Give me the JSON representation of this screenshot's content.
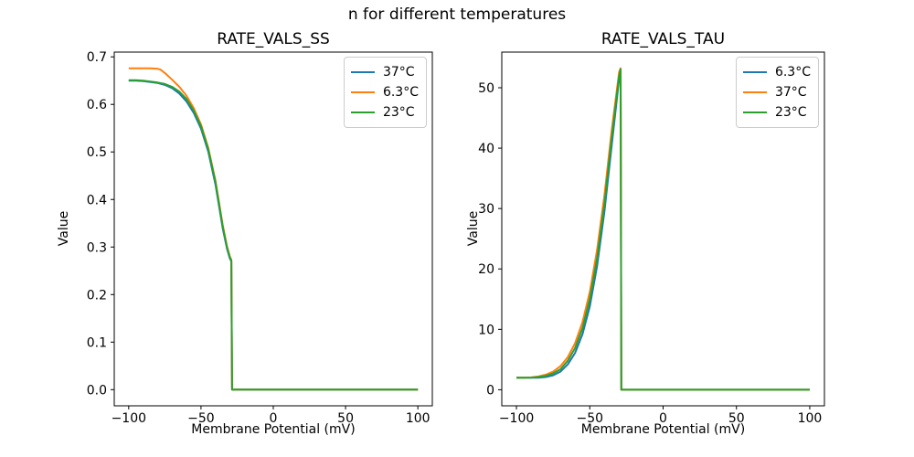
{
  "figure": {
    "suptitle": "n for different temperatures",
    "background": "#ffffff"
  },
  "colors": {
    "series_blue": "#1f77b4",
    "series_orange": "#ff7f0e",
    "series_green": "#2ca02c",
    "axis": "#000000",
    "legend_border": "#cccccc"
  },
  "chart_data": [
    {
      "type": "line",
      "title": "RATE_VALS_SS",
      "xlabel": "Membrane Potential (mV)",
      "ylabel": "Value",
      "xlim": [
        -110,
        110
      ],
      "ylim": [
        -0.034,
        0.71
      ],
      "x_ticks": [
        -100,
        -50,
        0,
        50,
        100
      ],
      "x_tick_labels": [
        "−100",
        "−50",
        "0",
        "50",
        "100"
      ],
      "y_ticks": [
        0.0,
        0.1,
        0.2,
        0.3,
        0.4,
        0.5,
        0.6,
        0.7
      ],
      "y_tick_labels": [
        "0.0",
        "0.1",
        "0.2",
        "0.3",
        "0.4",
        "0.5",
        "0.6",
        "0.7"
      ],
      "grid": false,
      "legend_position": "upper right",
      "series": [
        {
          "name": "37°C",
          "color": "#1f77b4",
          "points": [
            [
              -100,
              0.65
            ],
            [
              -95,
              0.65
            ],
            [
              -90,
              0.649
            ],
            [
              -85,
              0.647
            ],
            [
              -80,
              0.645
            ],
            [
              -75,
              0.641
            ],
            [
              -70,
              0.634
            ],
            [
              -65,
              0.623
            ],
            [
              -60,
              0.606
            ],
            [
              -55,
              0.582
            ],
            [
              -50,
              0.549
            ],
            [
              -45,
              0.501
            ],
            [
              -40,
              0.432
            ],
            [
              -35,
              0.34
            ],
            [
              -32,
              0.296
            ],
            [
              -30,
              0.276
            ],
            [
              -29,
              0.27
            ],
            [
              -28.5,
              0.0
            ],
            [
              -20,
              0.0
            ],
            [
              0,
              0.0
            ],
            [
              50,
              0.0
            ],
            [
              100,
              0.0
            ]
          ]
        },
        {
          "name": "6.3°C",
          "color": "#ff7f0e",
          "points": [
            [
              -100,
              0.676
            ],
            [
              -95,
              0.676
            ],
            [
              -90,
              0.676
            ],
            [
              -85,
              0.676
            ],
            [
              -80,
              0.675
            ],
            [
              -78,
              0.673
            ],
            [
              -75,
              0.666
            ],
            [
              -70,
              0.652
            ],
            [
              -65,
              0.637
            ],
            [
              -60,
              0.618
            ],
            [
              -55,
              0.592
            ],
            [
              -50,
              0.558
            ],
            [
              -45,
              0.509
            ],
            [
              -40,
              0.44
            ],
            [
              -35,
              0.347
            ],
            [
              -32,
              0.301
            ],
            [
              -30,
              0.28
            ],
            [
              -29,
              0.273
            ],
            [
              -28.5,
              0.0
            ],
            [
              -20,
              0.0
            ],
            [
              0,
              0.0
            ],
            [
              50,
              0.0
            ],
            [
              100,
              0.0
            ]
          ]
        },
        {
          "name": "23°C",
          "color": "#2ca02c",
          "points": [
            [
              -100,
              0.651
            ],
            [
              -95,
              0.651
            ],
            [
              -90,
              0.65
            ],
            [
              -85,
              0.648
            ],
            [
              -80,
              0.646
            ],
            [
              -75,
              0.643
            ],
            [
              -70,
              0.637
            ],
            [
              -65,
              0.627
            ],
            [
              -60,
              0.611
            ],
            [
              -55,
              0.587
            ],
            [
              -50,
              0.554
            ],
            [
              -45,
              0.506
            ],
            [
              -40,
              0.437
            ],
            [
              -35,
              0.344
            ],
            [
              -32,
              0.299
            ],
            [
              -30,
              0.278
            ],
            [
              -29,
              0.272
            ],
            [
              -28.5,
              0.0
            ],
            [
              -20,
              0.0
            ],
            [
              0,
              0.0
            ],
            [
              50,
              0.0
            ],
            [
              100,
              0.0
            ]
          ]
        }
      ]
    },
    {
      "type": "line",
      "title": "RATE_VALS_TAU",
      "xlabel": "Membrane Potential (mV)",
      "ylabel": "Value",
      "xlim": [
        -110,
        110
      ],
      "ylim": [
        -2.66,
        55.9
      ],
      "x_ticks": [
        -100,
        -50,
        0,
        50,
        100
      ],
      "x_tick_labels": [
        "−100",
        "−50",
        "0",
        "50",
        "100"
      ],
      "y_ticks": [
        0,
        10,
        20,
        30,
        40,
        50
      ],
      "y_tick_labels": [
        "0",
        "10",
        "20",
        "30",
        "40",
        "50"
      ],
      "grid": false,
      "legend_position": "upper right",
      "series": [
        {
          "name": "6.3°C",
          "color": "#1f77b4",
          "points": [
            [
              -100,
              2.0
            ],
            [
              -95,
              2.0
            ],
            [
              -90,
              2.0
            ],
            [
              -85,
              2.0
            ],
            [
              -80,
              2.1
            ],
            [
              -75,
              2.4
            ],
            [
              -70,
              3.0
            ],
            [
              -65,
              4.2
            ],
            [
              -60,
              6.1
            ],
            [
              -55,
              9.2
            ],
            [
              -50,
              13.8
            ],
            [
              -45,
              20.5
            ],
            [
              -40,
              29.5
            ],
            [
              -35,
              40.5
            ],
            [
              -30,
              51.5
            ],
            [
              -29,
              53.0
            ],
            [
              -28.5,
              0.0
            ],
            [
              -20,
              0.0
            ],
            [
              0,
              0.0
            ],
            [
              50,
              0.0
            ],
            [
              100,
              0.0
            ]
          ]
        },
        {
          "name": "37°C",
          "color": "#ff7f0e",
          "points": [
            [
              -100,
              2.0
            ],
            [
              -95,
              2.0
            ],
            [
              -90,
              2.05
            ],
            [
              -85,
              2.2
            ],
            [
              -80,
              2.5
            ],
            [
              -75,
              3.0
            ],
            [
              -70,
              3.9
            ],
            [
              -65,
              5.4
            ],
            [
              -60,
              7.7
            ],
            [
              -55,
              11.2
            ],
            [
              -50,
              16.2
            ],
            [
              -45,
              23.2
            ],
            [
              -40,
              32.2
            ],
            [
              -35,
              43.0
            ],
            [
              -30,
              52.6
            ],
            [
              -29,
              53.2
            ],
            [
              -28.5,
              0.0
            ],
            [
              -20,
              0.0
            ],
            [
              0,
              0.0
            ],
            [
              50,
              0.0
            ],
            [
              100,
              0.0
            ]
          ]
        },
        {
          "name": "23°C",
          "color": "#2ca02c",
          "points": [
            [
              -100,
              2.0
            ],
            [
              -95,
              2.0
            ],
            [
              -90,
              2.02
            ],
            [
              -85,
              2.1
            ],
            [
              -80,
              2.3
            ],
            [
              -75,
              2.7
            ],
            [
              -70,
              3.4
            ],
            [
              -65,
              4.8
            ],
            [
              -60,
              6.9
            ],
            [
              -55,
              10.2
            ],
            [
              -50,
              15.0
            ],
            [
              -45,
              21.8
            ],
            [
              -40,
              30.8
            ],
            [
              -35,
              41.8
            ],
            [
              -30,
              52.0
            ],
            [
              -29,
              53.1
            ],
            [
              -28.5,
              0.0
            ],
            [
              -20,
              0.0
            ],
            [
              0,
              0.0
            ],
            [
              50,
              0.0
            ],
            [
              100,
              0.0
            ]
          ]
        }
      ]
    }
  ]
}
